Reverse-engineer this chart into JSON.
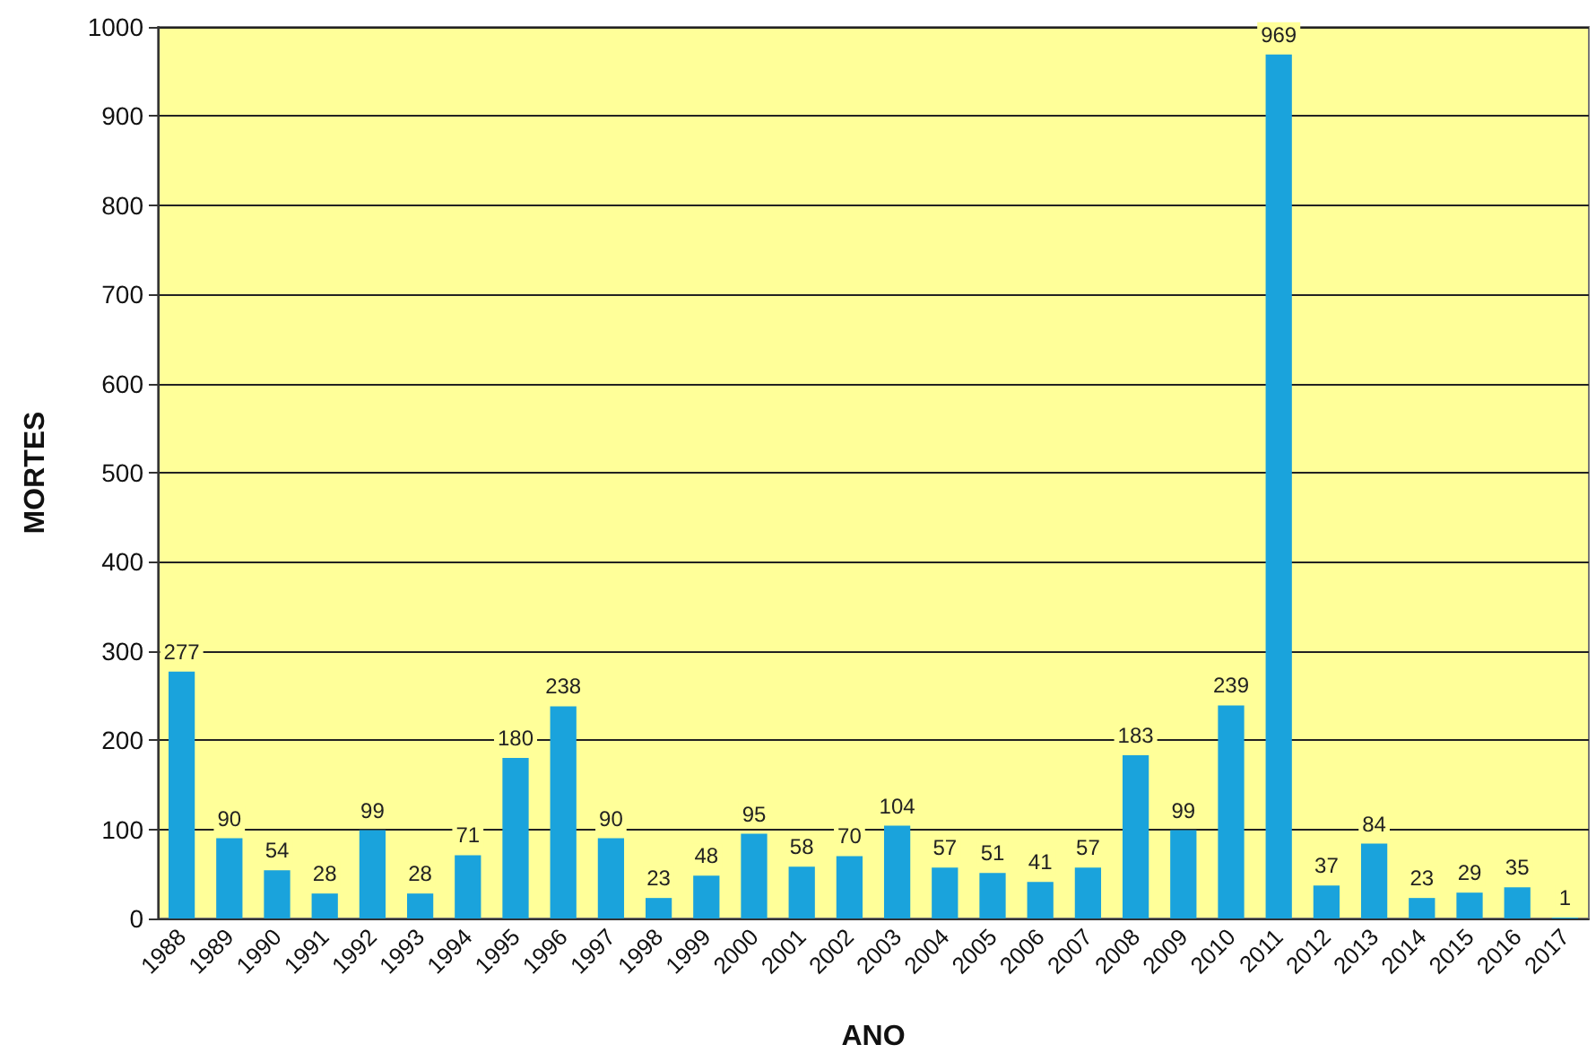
{
  "chart_data": {
    "type": "bar",
    "xlabel": "ANO",
    "ylabel": "MORTES",
    "categories": [
      "1988",
      "1989",
      "1990",
      "1991",
      "1992",
      "1993",
      "1994",
      "1995",
      "1996",
      "1997",
      "1998",
      "1999",
      "2000",
      "2001",
      "2002",
      "2003",
      "2004",
      "2005",
      "2006",
      "2007",
      "2008",
      "2009",
      "2010",
      "2011",
      "2012",
      "2013",
      "2014",
      "2015",
      "2016",
      "2017"
    ],
    "values": [
      277,
      90,
      54,
      28,
      99,
      28,
      71,
      180,
      238,
      90,
      23,
      48,
      95,
      58,
      70,
      104,
      57,
      51,
      41,
      57,
      183,
      99,
      239,
      969,
      37,
      84,
      23,
      29,
      35,
      1
    ],
    "color": "#1aa3dc",
    "ylim": [
      0,
      1000
    ],
    "yticks": [
      0,
      100,
      200,
      300,
      400,
      500,
      600,
      700,
      800,
      900,
      1000
    ],
    "grid": "y",
    "data_labels": true
  }
}
